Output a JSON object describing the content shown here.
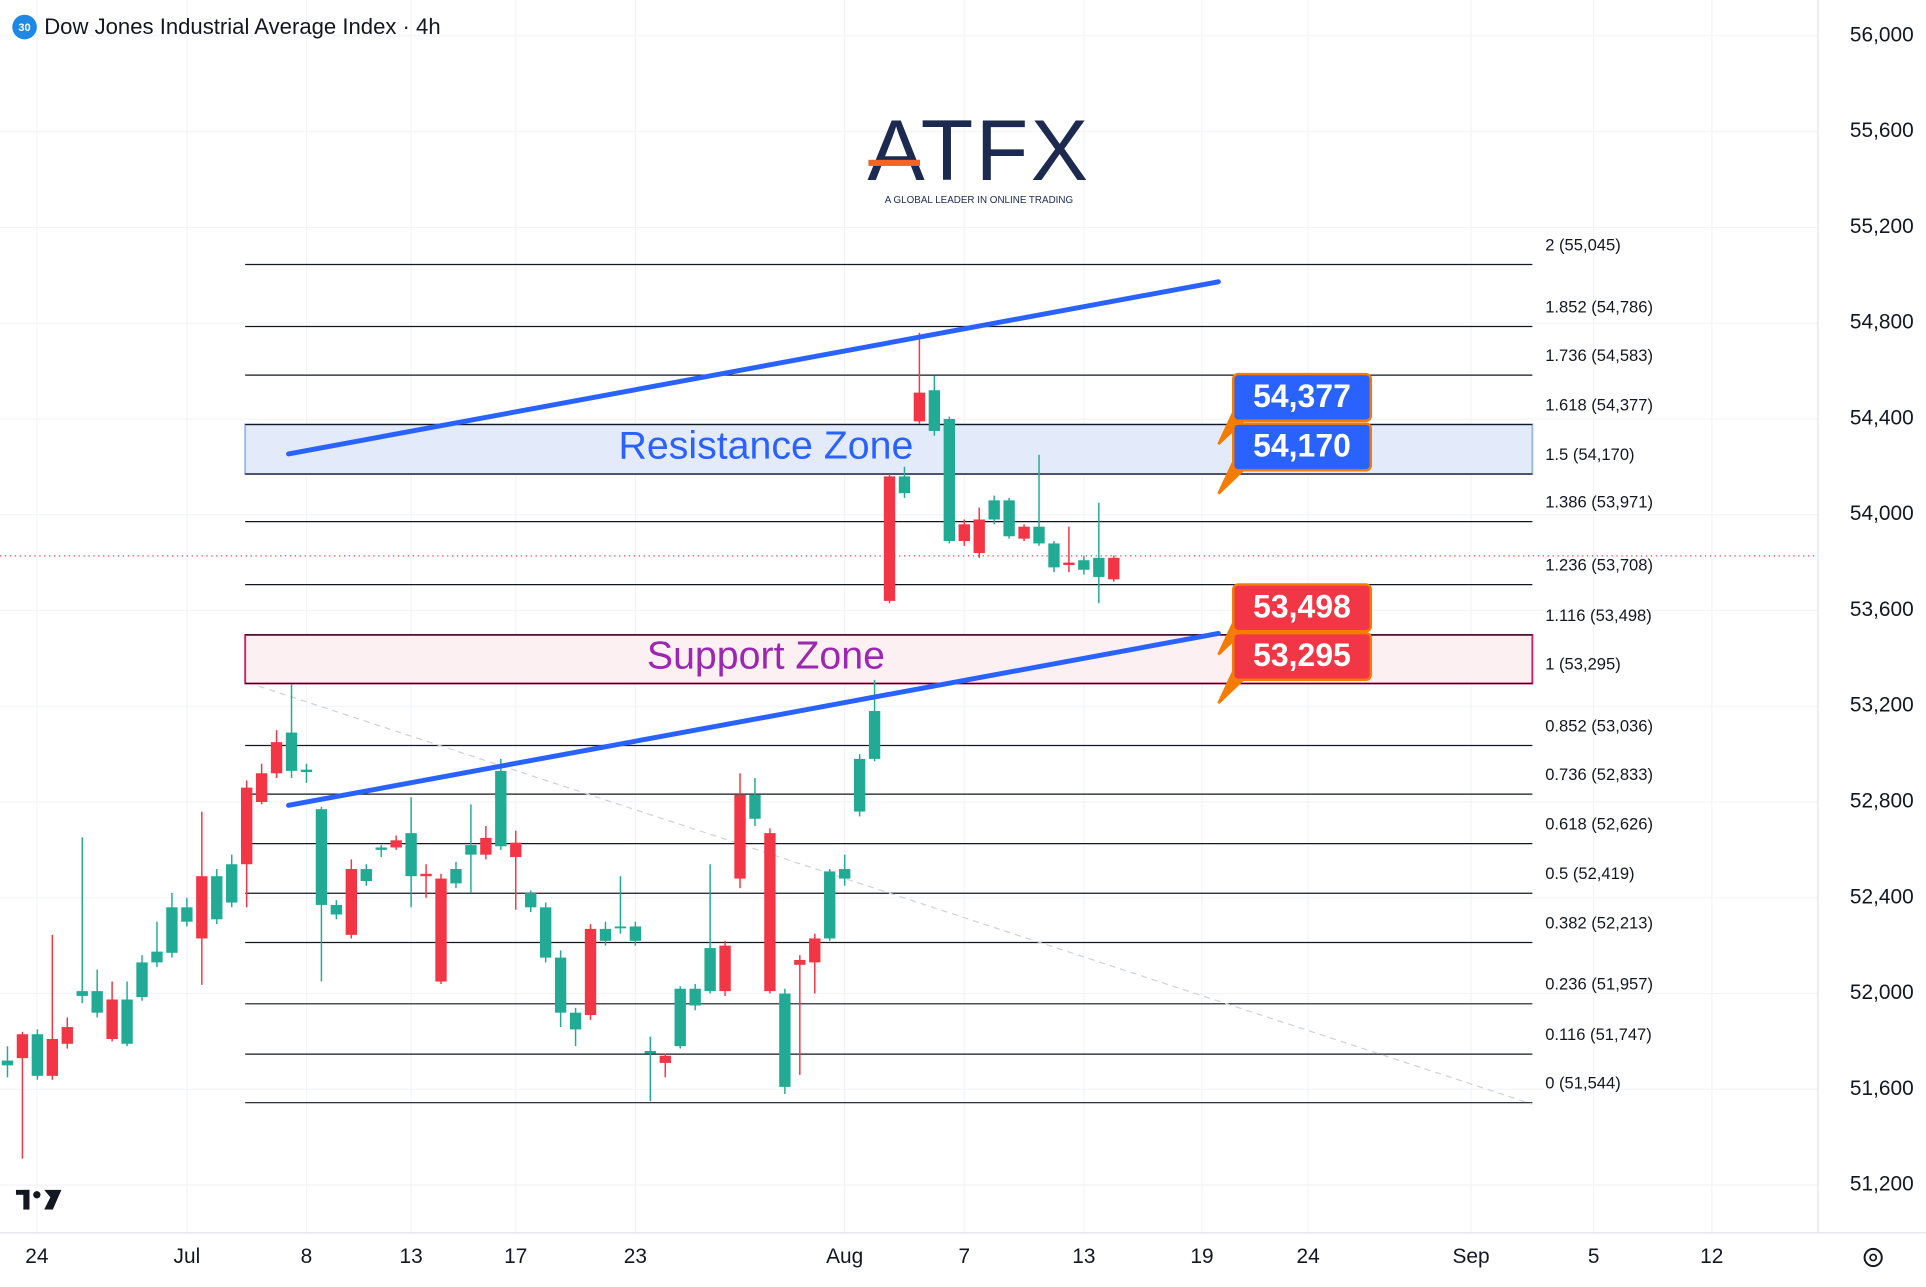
{
  "chart_data": {
    "type": "candlestick",
    "title": "Dow Jones Industrial Average Index · 4h",
    "symbol_badge": "30",
    "logo": {
      "text": "ATFX",
      "tagline": "A GLOBAL LEADER IN ONLINE TRADING"
    },
    "up_color": "#22ab94",
    "down_color": "#f23645",
    "grid": true,
    "xlim": [
      0,
      121.6
    ],
    "ylim": [
      51000,
      56150
    ],
    "xticks": [
      {
        "value": 2.47,
        "label": "24"
      },
      {
        "value": 12.5,
        "label": "Jul"
      },
      {
        "value": 20.5,
        "label": "8"
      },
      {
        "value": 27.5,
        "label": "13"
      },
      {
        "value": 34.5,
        "label": "17"
      },
      {
        "value": 42.5,
        "label": "23"
      },
      {
        "value": 56.5,
        "label": "Aug"
      },
      {
        "value": 64.5,
        "label": "7"
      },
      {
        "value": 72.5,
        "label": "13"
      },
      {
        "value": 80.4,
        "label": "19"
      },
      {
        "value": 87.5,
        "label": "24"
      },
      {
        "value": 98.4,
        "label": "Sep"
      },
      {
        "value": 106.6,
        "label": "5"
      },
      {
        "value": 114.5,
        "label": "12"
      }
    ],
    "yticks": [
      {
        "value": 51200,
        "label": "51,200"
      },
      {
        "value": 51600,
        "label": "51,600"
      },
      {
        "value": 52000,
        "label": "52,000"
      },
      {
        "value": 52400,
        "label": "52,400"
      },
      {
        "value": 52800,
        "label": "52,800"
      },
      {
        "value": 53200,
        "label": "53,200"
      },
      {
        "value": 53600,
        "label": "53,600"
      },
      {
        "value": 54000,
        "label": "54,000"
      },
      {
        "value": 54400,
        "label": "54,400"
      },
      {
        "value": 54800,
        "label": "54,800"
      },
      {
        "value": 55200,
        "label": "55,200"
      },
      {
        "value": 55600,
        "label": "55,600"
      },
      {
        "value": 56000,
        "label": "56,000"
      }
    ],
    "open": [
      51700,
      51830,
      51656,
      51810,
      51860,
      51990,
      51920,
      51975,
      51790,
      51985,
      52130,
      52170,
      52300,
      52490,
      52310,
      52380,
      52860,
      52920,
      53050,
      52930,
      52925,
      52370,
      52330,
      52520,
      52470,
      52600,
      52640,
      52490,
      52500,
      52480,
      52460,
      52580,
      52650,
      52615,
      52630,
      52360,
      52150,
      51920,
      51850,
      52270,
      52220,
      52280,
      52220,
      51750,
      51740,
      51780,
      51950,
      52010,
      52200,
      52830,
      52730,
      52670,
      51610,
      52140,
      52230,
      52230,
      52480,
      52760,
      52980,
      54160,
      54090,
      54510,
      54350,
      53890,
      53960,
      53980,
      53980,
      53910,
      53950,
      53880,
      53780,
      53800,
      53770,
      53740,
      53820
    ],
    "high": [
      51780,
      51840,
      51850,
      52245,
      51900,
      52652,
      52100,
      52050,
      52050,
      52160,
      52300,
      52420,
      52400,
      52760,
      52520,
      52580,
      52890,
      52960,
      53100,
      53290,
      52960,
      52780,
      52390,
      52560,
      52540,
      52620,
      52660,
      52820,
      52540,
      52500,
      52550,
      52790,
      52700,
      52980,
      52680,
      52430,
      52380,
      52180,
      51940,
      52290,
      52300,
      52490,
      52300,
      51820,
      51750,
      52030,
      52040,
      52540,
      52220,
      52920,
      52900,
      52690,
      52020,
      52160,
      52250,
      52520,
      52580,
      53000,
      53310,
      54170,
      54200,
      54760,
      54580,
      54410,
      53980,
      54030,
      54080,
      54070,
      53960,
      54250,
      53890,
      53950,
      53830,
      54050,
      53830
    ],
    "low": [
      51650,
      51310,
      51640,
      51640,
      51770,
      51960,
      51900,
      51800,
      51780,
      51970,
      52110,
      52150,
      52280,
      52036,
      52290,
      52360,
      52360,
      52790,
      52900,
      52900,
      52880,
      52050,
      52310,
      52230,
      52450,
      52570,
      52600,
      52360,
      52400,
      52040,
      52440,
      52420,
      52560,
      52600,
      52350,
      52340,
      52130,
      51860,
      51780,
      51890,
      52200,
      52250,
      52200,
      51550,
      51650,
      51770,
      51930,
      52000,
      51990,
      52440,
      52700,
      52000,
      51580,
      51660,
      52000,
      52220,
      52450,
      52740,
      52970,
      53630,
      54070,
      54380,
      54330,
      53880,
      53870,
      53820,
      53960,
      53900,
      53890,
      53870,
      53760,
      53760,
      53750,
      53630,
      53720
    ],
    "close": [
      51720,
      51730,
      51830,
      51656,
      51790,
      52010,
      52010,
      51810,
      51975,
      52130,
      52175,
      52360,
      52360,
      52230,
      52490,
      52540,
      52540,
      52800,
      52920,
      53090,
      52935,
      52770,
      52370,
      52245,
      52520,
      52610,
      52610,
      52670,
      52490,
      52050,
      52520,
      52620,
      52580,
      52930,
      52570,
      52420,
      52360,
      52150,
      51920,
      51910,
      52270,
      52280,
      52280,
      51760,
      51710,
      52020,
      52020,
      52190,
      52010,
      52480,
      52830,
      52010,
      52000,
      52120,
      52130,
      52510,
      52520,
      52980,
      53180,
      53640,
      54160,
      54390,
      54520,
      54400,
      53890,
      53840,
      54060,
      54060,
      53900,
      53950,
      53880,
      53790,
      53810,
      53820,
      53730
    ],
    "last_price": 53828,
    "fib": {
      "x": [
        16.4,
        102.5
      ],
      "levels": [
        {
          "value": 55045,
          "label": "2 (55,045)"
        },
        {
          "value": 54786,
          "label": "1.852 (54,786)"
        },
        {
          "value": 54583,
          "label": "1.736 (54,583)"
        },
        {
          "value": 54377,
          "label": "1.618 (54,377)"
        },
        {
          "value": 54170,
          "label": "1.5 (54,170)"
        },
        {
          "value": 53971,
          "label": "1.386 (53,971)"
        },
        {
          "value": 53708,
          "label": "1.236 (53,708)"
        },
        {
          "value": 53498,
          "label": "1.116 (53,498)"
        },
        {
          "value": 53295,
          "label": "1 (53,295)"
        },
        {
          "value": 53036,
          "label": "0.852 (53,036)"
        },
        {
          "value": 52833,
          "label": "0.736 (52,833)"
        },
        {
          "value": 52626,
          "label": "0.618 (52,626)"
        },
        {
          "value": 52419,
          "label": "0.5 (52,419)"
        },
        {
          "value": 52213,
          "label": "0.382 (52,213)"
        },
        {
          "value": 51957,
          "label": "0.236 (51,957)"
        },
        {
          "value": 51747,
          "label": "0.116 (51,747)"
        },
        {
          "value": 51544,
          "label": "0 (51,544)"
        }
      ]
    },
    "zones": [
      {
        "label": "Resistance Zone",
        "low": 54170,
        "high": 54377,
        "fill": "#e3ebfb",
        "stroke": "#9fb4e8",
        "text_color": "#2962ff"
      },
      {
        "label": "Support Zone",
        "low": 53295,
        "high": 53498,
        "fill": "#fdf0f3",
        "stroke": "#d81b60",
        "text_color": "#9c27b0"
      }
    ],
    "trendlines": [
      {
        "x": [
          19.3,
          81.5
        ],
        "y": [
          54254,
          54973
        ],
        "color": "#2962ff"
      },
      {
        "x": [
          19.3,
          81.5
        ],
        "y": [
          52786,
          53504
        ],
        "color": "#2962ff"
      }
    ],
    "guide_line": {
      "x": [
        17.3,
        102.5
      ],
      "y": [
        53284,
        51538
      ],
      "color": "#cfd3d8"
    },
    "callouts": [
      {
        "value": 54377,
        "label": "54,377",
        "color": "#2962ff"
      },
      {
        "value": 54170,
        "label": "54,170",
        "color": "#2962ff"
      },
      {
        "value": 53498,
        "label": "53,498",
        "color": "#f23645"
      },
      {
        "value": 53295,
        "label": "53,295",
        "color": "#f23645"
      }
    ]
  }
}
